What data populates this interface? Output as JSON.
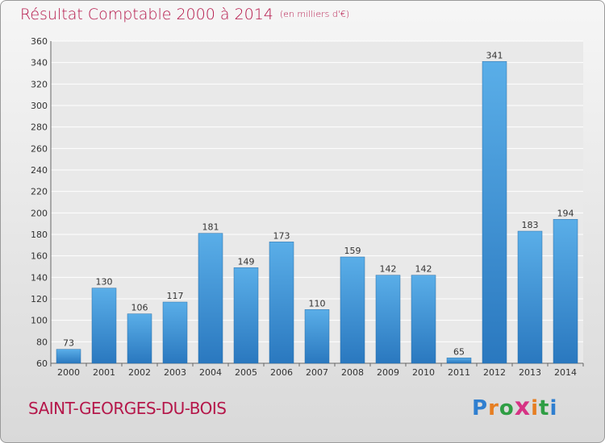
{
  "title": "Résultat Comptable 2000 à 2014",
  "unit_note": "(en milliers d'€)",
  "commune": "SAINT-GEORGES-DU-BOIS",
  "brand": {
    "letters": [
      "P",
      "r",
      "o",
      "x",
      "i",
      "t",
      "i"
    ],
    "colors": [
      "#2f7fd0",
      "#e67e22",
      "#2f9e44",
      "#d63384",
      "#e67e22",
      "#2f9e44",
      "#2f7fd0"
    ]
  },
  "colors": {
    "accent": "#b5174a",
    "bar_top": "#5aaee8",
    "bar_bottom": "#2a78bf"
  },
  "chart_data": {
    "type": "bar",
    "categories": [
      "2000",
      "2001",
      "2002",
      "2003",
      "2004",
      "2005",
      "2006",
      "2007",
      "2008",
      "2009",
      "2010",
      "2011",
      "2012",
      "2013",
      "2014"
    ],
    "values": [
      73,
      130,
      106,
      117,
      181,
      149,
      173,
      110,
      159,
      142,
      142,
      65,
      341,
      183,
      194
    ],
    "title": "Résultat Comptable 2000 à 2014",
    "ylim": [
      60,
      360
    ],
    "yticks": [
      60,
      80,
      100,
      120,
      140,
      160,
      180,
      200,
      220,
      240,
      260,
      280,
      300,
      320,
      340,
      360
    ],
    "grid": true,
    "legend": "none"
  }
}
